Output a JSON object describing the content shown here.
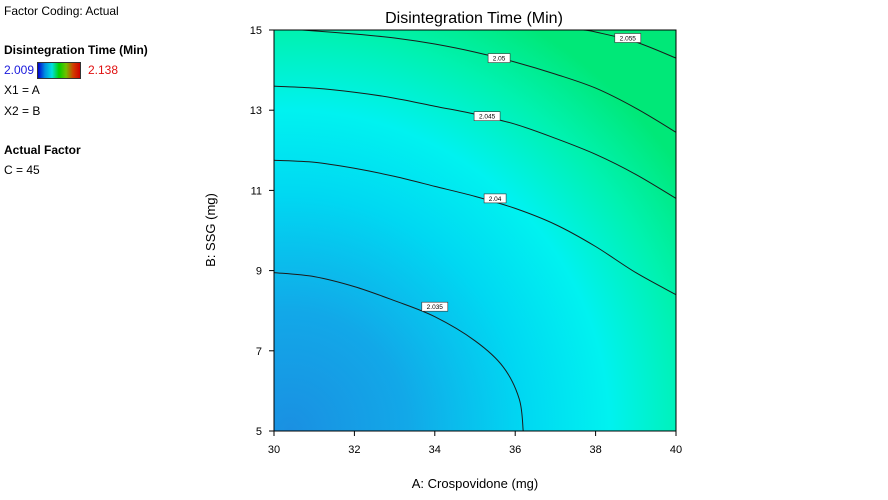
{
  "legend": {
    "factor_coding": "Factor Coding: Actual",
    "response_title": "Disintegration Time  (Min)",
    "scale_min": "2.009",
    "scale_max": "2.138",
    "x1": "X1 = A",
    "x2": "X2 = B",
    "actual_factor_title": "Actual Factor",
    "actual_factor_value": "C = 45"
  },
  "colors": {
    "low": "#0a8ee0",
    "mid": "#00f0f0",
    "high": "#00e880",
    "scale_min_text": "#1a1adc",
    "scale_max_text": "#e01010"
  },
  "chart_data": {
    "type": "contour",
    "title": "Disintegration Time  (Min)",
    "xlabel": "A: Crospovidone (mg)",
    "ylabel": "B: SSG (mg)",
    "xlim": [
      30,
      40
    ],
    "ylim": [
      5,
      15
    ],
    "xticks": [
      "30",
      "32",
      "34",
      "36",
      "38",
      "40"
    ],
    "yticks": [
      "5",
      "7",
      "9",
      "11",
      "13",
      "15"
    ],
    "contours": [
      {
        "level": "2.035",
        "label_at": [
          34,
          8.1
        ],
        "points": [
          [
            30,
            8.95
          ],
          [
            31,
            8.85
          ],
          [
            32,
            8.6
          ],
          [
            33,
            8.25
          ],
          [
            34,
            7.85
          ],
          [
            35,
            7.25
          ],
          [
            35.7,
            6.6
          ],
          [
            36.1,
            5.8
          ],
          [
            36.2,
            5.0
          ]
        ]
      },
      {
        "level": "2.04",
        "label_at": [
          35.5,
          10.8
        ],
        "points": [
          [
            30,
            11.75
          ],
          [
            31,
            11.7
          ],
          [
            32,
            11.55
          ],
          [
            33,
            11.35
          ],
          [
            34,
            11.1
          ],
          [
            35,
            10.85
          ],
          [
            36,
            10.55
          ],
          [
            37,
            10.15
          ],
          [
            38,
            9.6
          ],
          [
            39,
            8.95
          ],
          [
            40,
            8.4
          ]
        ]
      },
      {
        "level": "2.045",
        "label_at": [
          35.3,
          12.85
        ],
        "points": [
          [
            30,
            13.6
          ],
          [
            31,
            13.55
          ],
          [
            32,
            13.45
          ],
          [
            33,
            13.3
          ],
          [
            34,
            13.1
          ],
          [
            35,
            12.9
          ],
          [
            36,
            12.65
          ],
          [
            37,
            12.3
          ],
          [
            38,
            11.9
          ],
          [
            39,
            11.4
          ],
          [
            40,
            10.8
          ]
        ]
      },
      {
        "level": "2.05",
        "label_at": [
          35.6,
          14.3
        ],
        "points": [
          [
            30.7,
            15.0
          ],
          [
            32,
            14.9
          ],
          [
            33,
            14.8
          ],
          [
            34,
            14.65
          ],
          [
            35,
            14.45
          ],
          [
            36,
            14.2
          ],
          [
            37,
            13.9
          ],
          [
            38,
            13.55
          ],
          [
            39,
            13.05
          ],
          [
            40,
            12.45
          ]
        ]
      },
      {
        "level": "2.055",
        "label_at": [
          38.8,
          14.8
        ],
        "points": [
          [
            37.7,
            15.0
          ],
          [
            38,
            14.95
          ],
          [
            39,
            14.7
          ],
          [
            40,
            14.3
          ]
        ]
      }
    ]
  }
}
